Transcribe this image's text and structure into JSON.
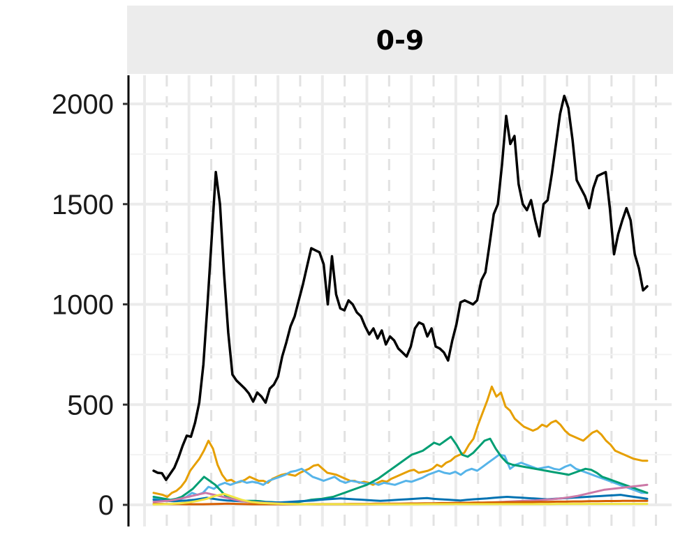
{
  "panel": {
    "strip_label": "0-9"
  },
  "chart_data": {
    "type": "line",
    "title": "",
    "xlabel": "",
    "ylabel": "",
    "ylim": [
      -40,
      2130
    ],
    "yticks": [
      0,
      500,
      1000,
      1500,
      2000
    ],
    "ytick_labels": [
      "0",
      "500",
      "1000",
      "1500",
      "2000"
    ],
    "grid": true,
    "series": [
      {
        "color": "#000000",
        "values": [
          170,
          160,
          158,
          125,
          155,
          185,
          235,
          295,
          345,
          340,
          410,
          510,
          700,
          1000,
          1330,
          1660,
          1500,
          1150,
          860,
          650,
          620,
          600,
          580,
          555,
          515,
          560,
          540,
          510,
          580,
          600,
          640,
          740,
          810,
          890,
          940,
          1020,
          1100,
          1190,
          1280,
          1270,
          1260,
          1200,
          1000,
          1240,
          1050,
          980,
          970,
          1020,
          1000,
          960,
          940,
          890,
          850,
          880,
          830,
          870,
          800,
          840,
          820,
          780,
          760,
          740,
          790,
          880,
          910,
          900,
          840,
          880,
          790,
          780,
          760,
          720,
          820,
          900,
          1010,
          1020,
          1010,
          1000,
          1020,
          1120,
          1160,
          1300,
          1450,
          1500,
          1700,
          1940,
          1800,
          1840,
          1600,
          1500,
          1470,
          1520,
          1420,
          1340,
          1500,
          1520,
          1650,
          1800,
          1950,
          2040,
          1980,
          1820,
          1620,
          1580,
          1540,
          1480,
          1580,
          1640,
          1650,
          1660,
          1480,
          1250,
          1350,
          1420,
          1480,
          1420,
          1250,
          1180,
          1070,
          1090
        ]
      },
      {
        "color": "#E69F00",
        "values": [
          60,
          55,
          50,
          40,
          60,
          70,
          90,
          120,
          170,
          200,
          230,
          270,
          320,
          280,
          200,
          150,
          120,
          125,
          110,
          115,
          125,
          140,
          130,
          120,
          120,
          110,
          130,
          140,
          150,
          155,
          150,
          145,
          160,
          170,
          180,
          195,
          200,
          180,
          160,
          155,
          150,
          140,
          130,
          120,
          120,
          110,
          115,
          110,
          100,
          110,
          120,
          115,
          130,
          140,
          150,
          160,
          170,
          175,
          160,
          165,
          170,
          180,
          200,
          190,
          210,
          220,
          240,
          250,
          260,
          300,
          330,
          400,
          460,
          520,
          590,
          540,
          560,
          490,
          470,
          430,
          410,
          390,
          380,
          370,
          380,
          400,
          390,
          410,
          420,
          400,
          370,
          350,
          340,
          330,
          320,
          340,
          360,
          370,
          350,
          320,
          300,
          270,
          260,
          250,
          240,
          230,
          225,
          220,
          220
        ]
      },
      {
        "color": "#56B4E9",
        "values": [
          30,
          28,
          25,
          20,
          25,
          30,
          40,
          60,
          50,
          60,
          90,
          80,
          100,
          110,
          100,
          110,
          120,
          110,
          115,
          110,
          100,
          120,
          130,
          140,
          150,
          165,
          170,
          180,
          160,
          140,
          130,
          120,
          130,
          140,
          120,
          110,
          120,
          115,
          110,
          105,
          110,
          100,
          110,
          105,
          100,
          110,
          120,
          115,
          125,
          135,
          150,
          160,
          170,
          160,
          155,
          165,
          150,
          170,
          180,
          170,
          190,
          210,
          230,
          250,
          245,
          180,
          200,
          210,
          200,
          190,
          180,
          185,
          190,
          180,
          175,
          190,
          200,
          180,
          170,
          160,
          150,
          140,
          130,
          120,
          110,
          100,
          90,
          80,
          70,
          60,
          60
        ]
      },
      {
        "color": "#009E73",
        "values": [
          40,
          35,
          30,
          25,
          30,
          40,
          60,
          80,
          110,
          140,
          120,
          100,
          70,
          40,
          30,
          25,
          20,
          20,
          20,
          18,
          15,
          14,
          12,
          10,
          10,
          12,
          15,
          20,
          25,
          28,
          30,
          35,
          40,
          50,
          60,
          70,
          80,
          90,
          100,
          115,
          130,
          150,
          170,
          190,
          210,
          230,
          250,
          260,
          270,
          290,
          310,
          300,
          320,
          340,
          300,
          250,
          240,
          260,
          290,
          320,
          330,
          280,
          240,
          210,
          200,
          195,
          190,
          185,
          180,
          175,
          170,
          165,
          160,
          155,
          150,
          160,
          170,
          180,
          175,
          160,
          140,
          130,
          120,
          110,
          100,
          90,
          80,
          70,
          60
        ]
      },
      {
        "color": "#0072B2",
        "values": [
          25,
          22,
          20,
          18,
          20,
          22,
          25,
          30,
          35,
          30,
          25,
          22,
          20,
          18,
          16,
          15,
          14,
          13,
          12,
          12,
          14,
          16,
          18,
          20,
          22,
          25,
          28,
          30,
          32,
          30,
          28,
          26,
          24,
          22,
          20,
          22,
          24,
          26,
          28,
          30,
          32,
          34,
          30,
          28,
          26,
          24,
          22,
          25,
          28,
          30,
          32,
          35,
          38,
          40,
          38,
          36,
          34,
          32,
          30,
          28,
          30,
          32,
          34,
          36,
          38,
          40,
          42,
          44,
          46,
          48,
          50,
          45,
          40,
          35,
          30
        ]
      },
      {
        "color": "#CC79A7",
        "values": [
          15,
          18,
          22,
          30,
          40,
          50,
          60,
          50,
          40,
          30,
          20,
          15,
          12,
          10,
          8,
          6,
          5,
          4,
          3,
          2,
          2,
          2,
          2,
          2,
          2,
          2,
          3,
          3,
          3,
          4,
          4,
          5,
          5,
          6,
          6,
          7,
          8,
          9,
          10,
          12,
          14,
          16,
          18,
          20,
          22,
          25,
          28,
          32,
          38,
          45,
          55,
          65,
          75,
          80,
          85,
          90,
          95,
          100
        ]
      },
      {
        "color": "#D55E00",
        "values": [
          5,
          5,
          4,
          4,
          3,
          3,
          3,
          4,
          5,
          6,
          5,
          4,
          3,
          3,
          3,
          3,
          3,
          3,
          3,
          4,
          4,
          4,
          4,
          4,
          5,
          5,
          5,
          6,
          6,
          6,
          6,
          7,
          7,
          8,
          8,
          9,
          9,
          10,
          10,
          11,
          11,
          12,
          12,
          13,
          13,
          14,
          14,
          15,
          15,
          16,
          16,
          17,
          17,
          18,
          18,
          19,
          19,
          20,
          20,
          20,
          20
        ]
      },
      {
        "color": "#F0E442",
        "values": [
          2,
          3,
          5,
          8,
          12,
          20,
          30,
          45,
          55,
          40,
          25,
          15,
          10,
          8,
          6,
          5,
          4,
          3,
          3,
          3,
          3,
          3,
          3,
          3,
          3,
          3,
          3,
          3,
          3,
          3,
          3,
          4,
          4,
          4,
          4,
          4,
          4,
          4,
          4,
          4,
          4,
          4,
          4,
          4,
          4,
          4,
          5,
          5,
          5,
          5,
          5,
          5,
          5,
          5,
          5,
          5,
          5
        ]
      }
    ]
  }
}
